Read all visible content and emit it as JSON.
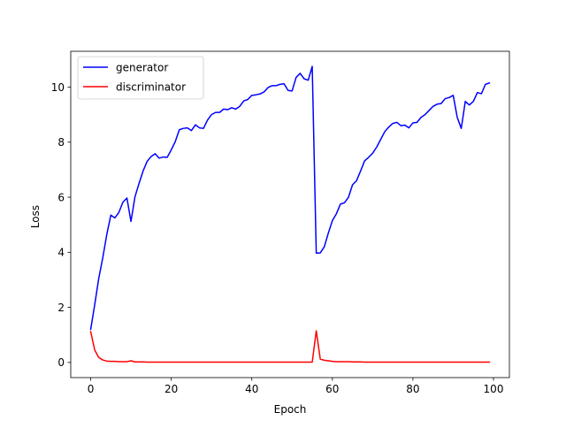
{
  "chart_data": {
    "type": "line",
    "title": "",
    "xlabel": "Epoch",
    "ylabel": "Loss",
    "xlim": [
      -4.95,
      103.95
    ],
    "ylim": [
      -0.55,
      11.3
    ],
    "xticks": [
      0,
      20,
      40,
      60,
      80,
      100
    ],
    "yticks": [
      0,
      2,
      4,
      6,
      8,
      10
    ],
    "grid": false,
    "legend_position": "top-left",
    "x": [
      0,
      1,
      2,
      3,
      4,
      5,
      6,
      7,
      8,
      9,
      10,
      11,
      12,
      13,
      14,
      15,
      16,
      17,
      18,
      19,
      20,
      21,
      22,
      23,
      24,
      25,
      26,
      27,
      28,
      29,
      30,
      31,
      32,
      33,
      34,
      35,
      36,
      37,
      38,
      39,
      40,
      41,
      42,
      43,
      44,
      45,
      46,
      47,
      48,
      49,
      50,
      51,
      52,
      53,
      54,
      55,
      56,
      57,
      58,
      59,
      60,
      61,
      62,
      63,
      64,
      65,
      66,
      67,
      68,
      69,
      70,
      71,
      72,
      73,
      74,
      75,
      76,
      77,
      78,
      79,
      80,
      81,
      82,
      83,
      84,
      85,
      86,
      87,
      88,
      89,
      90,
      91,
      92,
      93,
      94,
      95,
      96,
      97,
      98,
      99
    ],
    "series": [
      {
        "name": "generator",
        "color": "#0000ff",
        "values": [
          1.2,
          2.1,
          3.05,
          3.8,
          4.65,
          5.35,
          5.25,
          5.45,
          5.82,
          5.97,
          5.12,
          6.02,
          6.5,
          6.95,
          7.3,
          7.48,
          7.58,
          7.42,
          7.46,
          7.45,
          7.72,
          8.02,
          8.45,
          8.5,
          8.52,
          8.42,
          8.63,
          8.52,
          8.5,
          8.8,
          9.0,
          9.08,
          9.08,
          9.2,
          9.18,
          9.25,
          9.2,
          9.3,
          9.5,
          9.55,
          9.7,
          9.72,
          9.75,
          9.82,
          9.98,
          10.05,
          10.05,
          10.1,
          10.12,
          9.88,
          9.86,
          10.35,
          10.5,
          10.3,
          10.25,
          10.75,
          3.97,
          3.98,
          4.2,
          4.7,
          5.15,
          5.4,
          5.75,
          5.8,
          6.0,
          6.45,
          6.6,
          6.95,
          7.32,
          7.45,
          7.6,
          7.82,
          8.1,
          8.38,
          8.55,
          8.68,
          8.72,
          8.6,
          8.62,
          8.52,
          8.7,
          8.72,
          8.9,
          9.0,
          9.15,
          9.3,
          9.38,
          9.4,
          9.58,
          9.62,
          9.7,
          8.9,
          8.5,
          9.48,
          9.35,
          9.48,
          9.8,
          9.76,
          10.1,
          10.15
        ]
      },
      {
        "name": "discriminator",
        "color": "#ff0000",
        "values": [
          1.12,
          0.45,
          0.18,
          0.09,
          0.05,
          0.04,
          0.04,
          0.03,
          0.03,
          0.03,
          0.06,
          0.02,
          0.02,
          0.02,
          0.01,
          0.01,
          0.01,
          0.01,
          0.01,
          0.01,
          0.01,
          0.01,
          0.01,
          0.01,
          0.01,
          0.01,
          0.01,
          0.01,
          0.01,
          0.01,
          0.01,
          0.01,
          0.01,
          0.01,
          0.01,
          0.01,
          0.01,
          0.01,
          0.01,
          0.01,
          0.01,
          0.01,
          0.01,
          0.01,
          0.01,
          0.01,
          0.01,
          0.01,
          0.01,
          0.01,
          0.01,
          0.01,
          0.01,
          0.01,
          0.01,
          0.01,
          1.15,
          0.12,
          0.08,
          0.06,
          0.04,
          0.03,
          0.03,
          0.03,
          0.03,
          0.02,
          0.02,
          0.02,
          0.01,
          0.01,
          0.01,
          0.01,
          0.01,
          0.01,
          0.01,
          0.01,
          0.01,
          0.01,
          0.01,
          0.01,
          0.01,
          0.01,
          0.01,
          0.01,
          0.01,
          0.01,
          0.01,
          0.01,
          0.01,
          0.01,
          0.01,
          0.01,
          0.01,
          0.01,
          0.01,
          0.01,
          0.01,
          0.01,
          0.01,
          0.01
        ]
      }
    ]
  }
}
